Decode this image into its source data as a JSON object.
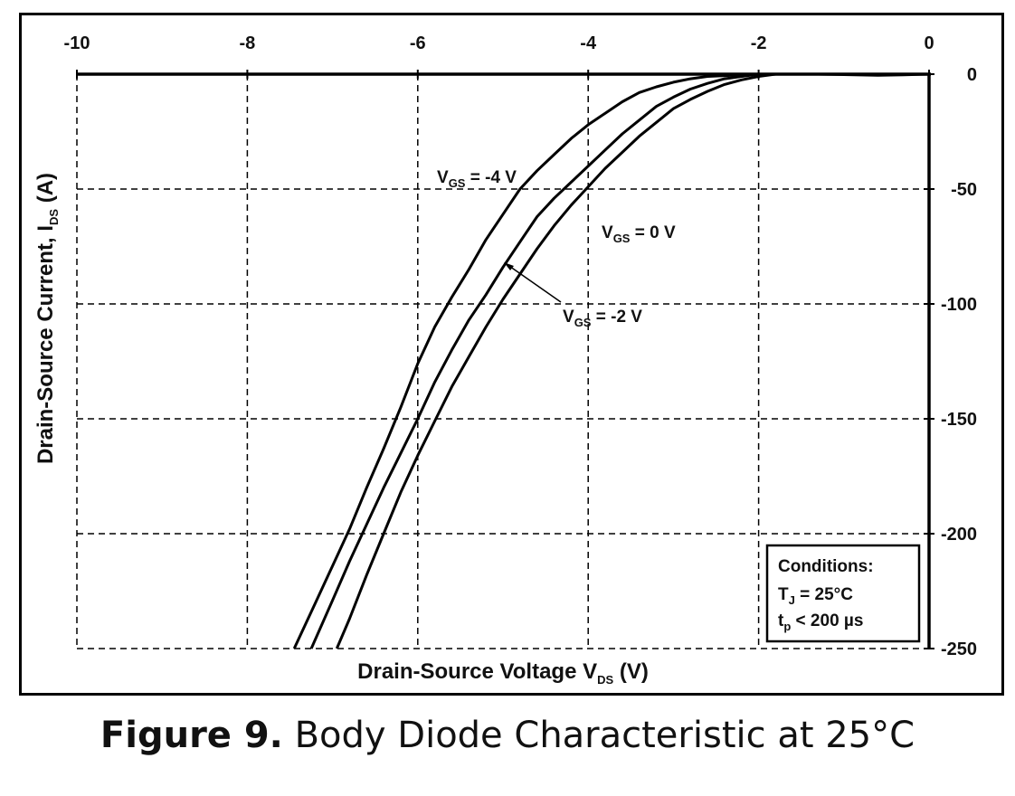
{
  "chart_data": {
    "type": "line",
    "title": "",
    "xlabel": "Drain-Source Voltage V",
    "xlabel_sub": "DS",
    "xlabel_unit": " (V)",
    "ylabel": "Drain-Source Current, I",
    "ylabel_sub": "DS",
    "ylabel_unit": " (A)",
    "xlim": [
      -10,
      0
    ],
    "ylim": [
      -250,
      0
    ],
    "x_ticks": [
      "-10",
      "-8",
      "-6",
      "-4",
      "-2",
      "0"
    ],
    "y_ticks": [
      "0",
      "-50",
      "-100",
      "-150",
      "-200",
      "-250"
    ],
    "x_tick_values": [
      -10,
      -8,
      -6,
      -4,
      -2,
      0
    ],
    "y_tick_values": [
      0,
      -50,
      -100,
      -150,
      -200,
      -250
    ],
    "grid": true,
    "series": [
      {
        "name": "V_GS = -4 V",
        "label_main": "V",
        "label_sub": "GS",
        "label_rest": " = -4 V",
        "x": [
          -7.45,
          -7.2,
          -7.0,
          -6.8,
          -6.6,
          -6.4,
          -6.2,
          -6.0,
          -5.8,
          -5.6,
          -5.4,
          -5.2,
          -5.0,
          -4.8,
          -4.6,
          -4.4,
          -4.2,
          -4.0,
          -3.8,
          -3.6,
          -3.4,
          -3.2,
          -3.0,
          -2.8,
          -2.6,
          -2.3,
          -2.0,
          -1.7
        ],
        "y": [
          -250,
          -230,
          -214,
          -198,
          -180,
          -163,
          -145,
          -126,
          -110,
          -97,
          -85,
          -72,
          -61,
          -50,
          -42,
          -35,
          -28,
          -22,
          -17,
          -12,
          -8,
          -5.5,
          -3.5,
          -2,
          -1,
          -0.5,
          0,
          0
        ]
      },
      {
        "name": "V_GS = -2 V",
        "label_main": "V",
        "label_sub": "GS",
        "label_rest": " = -2 V",
        "x": [
          -7.25,
          -7.0,
          -6.8,
          -6.6,
          -6.4,
          -6.2,
          -6.0,
          -5.8,
          -5.6,
          -5.4,
          -5.2,
          -5.0,
          -4.8,
          -4.6,
          -4.4,
          -4.2,
          -4.0,
          -3.8,
          -3.6,
          -3.4,
          -3.2,
          -3.0,
          -2.8,
          -2.6,
          -2.4,
          -2.2,
          -2.0,
          -1.7
        ],
        "y": [
          -250,
          -229,
          -212,
          -196,
          -180,
          -165,
          -150,
          -134,
          -120,
          -107,
          -96,
          -84,
          -73,
          -62,
          -54,
          -47,
          -40,
          -33,
          -26,
          -20,
          -14,
          -10,
          -6.5,
          -4,
          -2,
          -1,
          0,
          0
        ]
      },
      {
        "name": "V_GS = 0 V",
        "label_main": "V",
        "label_sub": "GS",
        "label_rest": " = 0 V",
        "x": [
          -6.95,
          -6.8,
          -6.6,
          -6.4,
          -6.2,
          -6.0,
          -5.8,
          -5.6,
          -5.4,
          -5.2,
          -5.0,
          -4.8,
          -4.6,
          -4.4,
          -4.2,
          -4.0,
          -3.8,
          -3.6,
          -3.4,
          -3.2,
          -3.0,
          -2.8,
          -2.6,
          -2.4,
          -2.2,
          -2.0,
          -1.8,
          -1.6,
          -1.3,
          -1.0,
          -0.6,
          -0.3,
          0
        ],
        "y": [
          -250,
          -237,
          -218,
          -200,
          -182,
          -166,
          -151,
          -136,
          -123,
          -110,
          -98,
          -87,
          -76,
          -66,
          -57,
          -49,
          -41,
          -34,
          -27,
          -21,
          -15,
          -11,
          -7.5,
          -4.5,
          -2.5,
          -1,
          0,
          0,
          0,
          -0.2,
          -0.5,
          -0.3,
          0
        ]
      }
    ],
    "annotations": [
      {
        "text_main": "Conditions:",
        "line2_main": "T",
        "line2_sub": "J",
        "line2_rest": " = 25°C",
        "line3_main": "t",
        "line3_sub": "p",
        "line3_rest": " < 200 µs"
      }
    ]
  },
  "caption": {
    "bold": "Figure 9.",
    "rest": " Body Diode Characteristic at 25°C"
  }
}
